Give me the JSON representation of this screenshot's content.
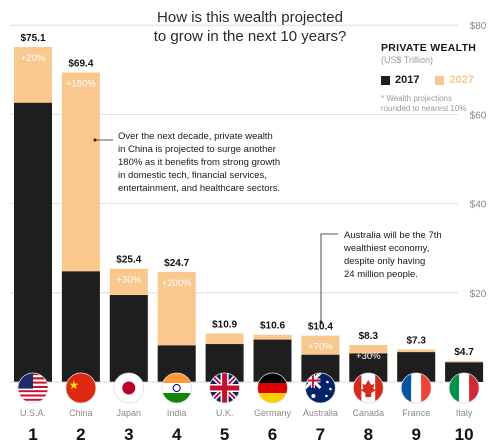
{
  "title": "How is this wealth projected\nto grow in the next 10 years?",
  "legend": {
    "title": "PRIVATE WEALTH",
    "unit": "(US$ Trillion)",
    "item_2017": "2017",
    "item_2027": "2027",
    "note": "* Wealth projections\n  rounded to nearest 10%"
  },
  "colors": {
    "y2017": "#1e1e1e",
    "y2027": "#f9c88e",
    "growth_text": "#ffffff",
    "grid": "#d8d8d8"
  },
  "annotations": {
    "china": "Over the next decade, private wealth\nin China is projected to surge another\n180% as it benefits from strong growth\nin domestic tech, financial services,\nentertainment, and healthcare sectors.",
    "australia": "Australia will be the 7th\nwealthiest economy,\ndespite only having\n24 million people."
  },
  "chart_data": {
    "type": "bar",
    "title": "How is this wealth projected to grow in the next 10 years?",
    "ylabel": "",
    "ylim": [
      0,
      80
    ],
    "yticks": [
      "$20",
      "$40",
      "$60",
      "$80"
    ],
    "grid": true,
    "legend_position": "top-right",
    "categories": [
      "U.S.A.",
      "China",
      "Japan",
      "India",
      "U.K.",
      "Germany",
      "Australia",
      "Canada",
      "France",
      "Italy"
    ],
    "ranks": [
      "1",
      "2",
      "3",
      "4",
      "5",
      "6",
      "7",
      "8",
      "9",
      "10"
    ],
    "flags": [
      "usa-flag-icon",
      "china-flag-icon",
      "japan-flag-icon",
      "india-flag-icon",
      "uk-flag-icon",
      "germany-flag-icon",
      "australia-flag-icon",
      "canada-flag-icon",
      "france-flag-icon",
      "italy-flag-icon"
    ],
    "series": [
      {
        "name": "2017",
        "values": [
          62.6,
          24.8,
          19.5,
          8.2,
          8.5,
          9.5,
          6.1,
          6.4,
          6.7,
          4.4
        ]
      },
      {
        "name": "2027",
        "values": [
          75.1,
          69.4,
          25.4,
          24.7,
          10.9,
          10.6,
          10.4,
          8.3,
          7.3,
          4.7
        ]
      }
    ],
    "value_labels": [
      "$75.1",
      "$69.4",
      "$25.4",
      "$24.7",
      "$10.9",
      "$10.6",
      "$10.4",
      "$8.3",
      "$7.3",
      "$4.7"
    ],
    "growth_labels": [
      "+20%",
      "+180%",
      "+30%",
      "+200%",
      "",
      "",
      "+70%",
      "+30%",
      "",
      ""
    ]
  }
}
